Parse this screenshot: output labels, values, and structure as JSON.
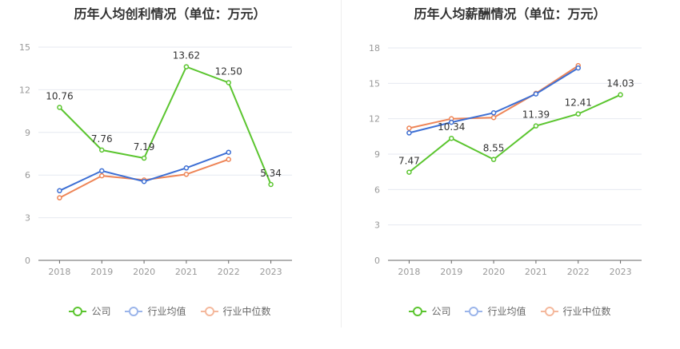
{
  "chart_data": [
    {
      "type": "line",
      "title": "历年人均创利情况（单位：万元）",
      "categories": [
        "2018",
        "2019",
        "2020",
        "2021",
        "2022",
        "2023"
      ],
      "ylim": [
        0,
        15
      ],
      "yticks": [
        "0",
        "3",
        "6",
        "9",
        "12",
        "15"
      ],
      "grid": true,
      "legend_position": "bottom",
      "series": [
        {
          "name": "公司",
          "color": "#5bc52f",
          "values": [
            10.76,
            7.76,
            7.19,
            13.62,
            12.5,
            5.34
          ],
          "labels": [
            "10.76",
            "7.76",
            "7.19",
            "13.62",
            "12.50",
            "5.34"
          ]
        },
        {
          "name": "行业均值",
          "color": "#3d6fd4",
          "values": [
            4.9,
            6.3,
            5.55,
            6.5,
            7.6,
            null
          ]
        },
        {
          "name": "行业中位数",
          "color": "#ee8557",
          "values": [
            4.4,
            5.95,
            5.65,
            6.05,
            7.1,
            null
          ]
        }
      ]
    },
    {
      "type": "line",
      "title": "历年人均薪酬情况（单位：万元）",
      "categories": [
        "2018",
        "2019",
        "2020",
        "2021",
        "2022",
        "2023"
      ],
      "ylim": [
        0,
        18
      ],
      "yticks": [
        "0",
        "3",
        "6",
        "9",
        "12",
        "15",
        "18"
      ],
      "grid": true,
      "legend_position": "bottom",
      "series": [
        {
          "name": "公司",
          "color": "#5bc52f",
          "values": [
            7.47,
            10.34,
            8.55,
            11.39,
            12.41,
            14.03
          ],
          "labels": [
            "7.47",
            "10.34",
            "8.55",
            "11.39",
            "12.41",
            "14.03"
          ]
        },
        {
          "name": "行业均值",
          "color": "#3d6fd4",
          "values": [
            10.8,
            11.7,
            12.5,
            14.1,
            16.3,
            null
          ]
        },
        {
          "name": "行业中位数",
          "color": "#ee8557",
          "values": [
            11.2,
            12.0,
            12.1,
            14.15,
            16.5,
            null
          ]
        }
      ]
    }
  ]
}
